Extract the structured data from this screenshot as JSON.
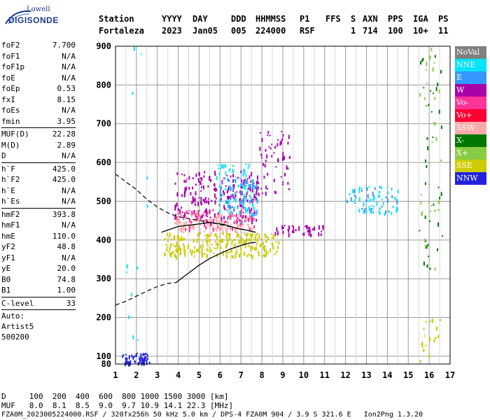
{
  "logo": {
    "top_text": "Lowell",
    "main_text": "DIGISONDE"
  },
  "header": {
    "labels": [
      "Station",
      "YYYY",
      "DAY",
      "DDD",
      "HHMMSS",
      "P1",
      "FFS",
      "S",
      "AXN",
      "PPS",
      "IGA",
      "PS"
    ],
    "values": [
      "Fortaleza",
      "2023",
      "Jan05",
      "005",
      "224000",
      "RSF",
      "",
      "1",
      "714",
      "100",
      "10+",
      "11"
    ]
  },
  "params_group1": [
    {
      "name": "foF2",
      "value": "7.700"
    },
    {
      "name": "foF1",
      "value": "N/A"
    },
    {
      "name": "foF1p",
      "value": "N/A"
    },
    {
      "name": "foE",
      "value": "N/A"
    },
    {
      "name": "foEp",
      "value": "0.53"
    },
    {
      "name": "fxI",
      "value": "8.15"
    },
    {
      "name": "foEs",
      "value": "N/A"
    },
    {
      "name": "fmin",
      "value": "3.95"
    }
  ],
  "params_group2": [
    {
      "name": "MUF(D)",
      "value": "22.28"
    },
    {
      "name": "M(D)",
      "value": "2.89"
    },
    {
      "name": "D",
      "value": "N/A"
    }
  ],
  "params_group3": [
    {
      "name": "h`F",
      "value": "425.0"
    },
    {
      "name": "h`F2",
      "value": "425.0"
    },
    {
      "name": "h`E",
      "value": "N/A"
    },
    {
      "name": "h`Es",
      "value": "N/A"
    }
  ],
  "params_group4": [
    {
      "name": "hmF2",
      "value": "393.8"
    },
    {
      "name": "hmF1",
      "value": "N/A"
    },
    {
      "name": "hmE",
      "value": "110.0"
    },
    {
      "name": "yF2",
      "value": "48.8"
    },
    {
      "name": "yF1",
      "value": "N/A"
    },
    {
      "name": "yE",
      "value": "20.0"
    },
    {
      "name": "B0",
      "value": "74.8"
    },
    {
      "name": "B1",
      "value": "1.00"
    }
  ],
  "clevel": {
    "name": "C-level",
    "value": "33"
  },
  "auto_lines": [
    "Auto:",
    "Artist5",
    "500200"
  ],
  "legend": [
    {
      "label": "NoVal",
      "color": "#808080"
    },
    {
      "label": "NNE",
      "color": "#00e5ff"
    },
    {
      "label": "E",
      "color": "#3399ff"
    },
    {
      "label": "W",
      "color": "#aa00aa"
    },
    {
      "label": "Vo-",
      "color": "#ff3399"
    },
    {
      "label": "Vo+",
      "color": "#ff0033"
    },
    {
      "label": "SSW",
      "color": "#ffaaaa"
    },
    {
      "label": "X-",
      "color": "#007700"
    },
    {
      "label": "X+",
      "color": "#88cc44"
    },
    {
      "label": "SSE",
      "color": "#cccc00"
    },
    {
      "label": "NNW",
      "color": "#2222dd"
    }
  ],
  "footer": {
    "d_line": "D     100  200  400  600  800 1000 1500 3000 [km]",
    "muf_line": "MUF   8.0  8.1  8.5  9.0  9.7 10.9 14.1 22.3 [MHz]",
    "file_line": "FZA0M_2023005224000.RSF / 320fx256h 50 kHz 5.0 km / DPS-4 FZA0M 904 / 3.9 S 321.6 E   Ion2Png 1.3.20"
  },
  "chart_data": {
    "type": "scatter",
    "xlim": [
      1,
      17
    ],
    "ylim": [
      80,
      900
    ],
    "x_ticks": [
      1,
      2,
      3,
      4,
      5,
      6,
      7,
      8,
      9,
      10,
      11,
      12,
      13,
      14,
      15,
      16,
      17
    ],
    "y_ticks": [
      80,
      100,
      200,
      300,
      400,
      500,
      600,
      700,
      800,
      900
    ],
    "grid": true,
    "trace_f2": {
      "x": [
        3.2,
        4.0,
        4.8,
        5.5,
        6.2,
        6.8,
        7.3,
        7.7
      ],
      "y": [
        420,
        435,
        440,
        445,
        440,
        430,
        425,
        420
      ]
    },
    "profile_solid": {
      "x": [
        3.9,
        4.5,
        5.0,
        5.5,
        6.0,
        6.5,
        7.0,
        7.4,
        7.7
      ],
      "y": [
        290,
        315,
        335,
        352,
        365,
        377,
        386,
        392,
        394
      ]
    },
    "profile_dashed_upper": {
      "x": [
        1.0,
        1.5,
        2.0,
        2.5,
        3.0,
        3.5,
        4.0,
        5.0,
        6.0,
        7.0,
        7.7
      ],
      "y": [
        570,
        550,
        530,
        505,
        485,
        470,
        460,
        450,
        440,
        428,
        420
      ]
    },
    "profile_dashed_lower": {
      "x": [
        1.0,
        1.5,
        2.0,
        2.5,
        3.0,
        3.5,
        3.9
      ],
      "y": [
        232,
        242,
        255,
        268,
        280,
        288,
        290
      ]
    },
    "echo_clusters": [
      {
        "x_range": [
          3.8,
          7.8
        ],
        "y_range": [
          450,
          580
        ],
        "color": "#aa00aa",
        "count": 220
      },
      {
        "x_range": [
          7.8,
          9.4
        ],
        "y_range": [
          520,
          700
        ],
        "color": "#aa00aa",
        "count": 55
      },
      {
        "x_range": [
          3.8,
          7.6
        ],
        "y_range": [
          420,
          470
        ],
        "color": "#ffaaaa",
        "count": 140
      },
      {
        "x_range": [
          3.8,
          7.6
        ],
        "y_range": [
          430,
          480
        ],
        "color": "#ff3399",
        "count": 60
      },
      {
        "x_range": [
          3.3,
          8.8
        ],
        "y_range": [
          360,
          420
        ],
        "color": "#cccc00",
        "count": 260
      },
      {
        "x_range": [
          5.8,
          7.6
        ],
        "y_range": [
          470,
          600
        ],
        "color": "#00e5ff",
        "count": 70
      },
      {
        "x_range": [
          5.8,
          7.8
        ],
        "y_range": [
          450,
          560
        ],
        "color": "#3399ff",
        "count": 60
      },
      {
        "x_range": [
          8.6,
          11.0
        ],
        "y_range": [
          415,
          440
        ],
        "color": "#aa00aa",
        "count": 45
      },
      {
        "x_range": [
          12.0,
          14.5
        ],
        "y_range": [
          470,
          540
        ],
        "color": "#00e5ff",
        "count": 50
      },
      {
        "x_range": [
          12.0,
          14.5
        ],
        "y_range": [
          470,
          540
        ],
        "color": "#3399ff",
        "count": 30
      },
      {
        "x_range": [
          1.3,
          2.6
        ],
        "y_range": [
          80,
          110
        ],
        "color": "#2222dd",
        "count": 60
      },
      {
        "x_range": [
          15.5,
          16.6
        ],
        "y_range": [
          300,
          900
        ],
        "color": "#007700",
        "count": 40
      },
      {
        "x_range": [
          15.5,
          16.6
        ],
        "y_range": [
          300,
          900
        ],
        "color": "#88cc44",
        "count": 30
      },
      {
        "x_range": [
          15.5,
          16.6
        ],
        "y_range": [
          80,
          200
        ],
        "color": "#cccc00",
        "count": 20
      },
      {
        "x_range": [
          1.5,
          2.5
        ],
        "y_range": [
          100,
          900
        ],
        "color": "#00e5ff",
        "count": 12
      }
    ]
  }
}
